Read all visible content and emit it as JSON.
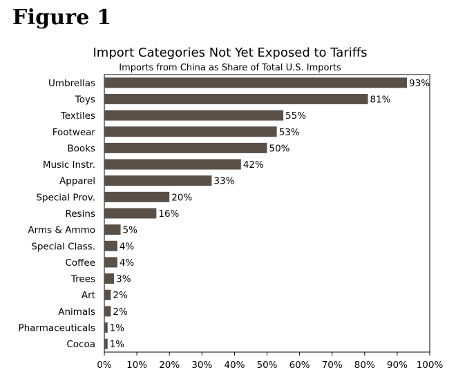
{
  "figure_label": "Figure 1",
  "chart_data": {
    "type": "bar",
    "orientation": "horizontal",
    "title": "Import Categories Not Yet Exposed to Tariffs",
    "subtitle": "Imports from China as Share of Total U.S. Imports",
    "xlabel": "",
    "ylabel": "",
    "xlim": [
      0,
      100
    ],
    "x_ticks": [
      0,
      10,
      20,
      30,
      40,
      50,
      60,
      70,
      80,
      90,
      100
    ],
    "x_tick_suffix": "%",
    "categories": [
      "Umbrellas",
      "Toys",
      "Textiles",
      "Footwear",
      "Books",
      "Music Instr.",
      "Apparel",
      "Special Prov.",
      "Resins",
      "Arms & Ammo",
      "Special Class.",
      "Coffee",
      "Trees",
      "Art",
      "Animals",
      "Pharmaceuticals",
      "Cocoa"
    ],
    "values": [
      93,
      81,
      55,
      53,
      50,
      42,
      33,
      20,
      16,
      5,
      4,
      4,
      3,
      2,
      2,
      1,
      1
    ],
    "data_labels": [
      "93%",
      "81%",
      "55%",
      "53%",
      "50%",
      "42%",
      "33%",
      "20%",
      "16%",
      "5%",
      "4%",
      "4%",
      "3%",
      "2%",
      "2%",
      "1%",
      "1%"
    ],
    "bar_color": "#5b5048",
    "grid": false,
    "legend": "none"
  }
}
